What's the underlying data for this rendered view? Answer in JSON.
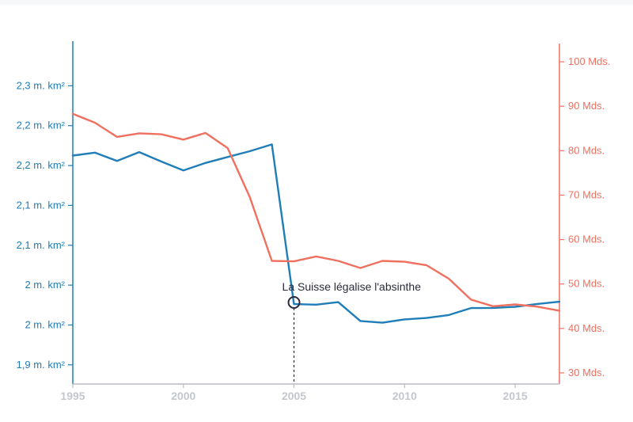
{
  "chart_data": {
    "type": "line",
    "x": [
      1995,
      1996,
      1997,
      1998,
      1999,
      2000,
      2001,
      2002,
      2003,
      2004,
      2005,
      2006,
      2007,
      2008,
      2009,
      2010,
      2011,
      2012,
      2013,
      2014,
      2015,
      2016,
      2017
    ],
    "series": [
      {
        "axis": "left",
        "color": "#1f7db8",
        "values": [
          2.1625,
          2.1661,
          2.1557,
          2.1668,
          2.155,
          2.1439,
          2.1532,
          2.1607,
          2.1679,
          2.1765,
          1.9763,
          1.9755,
          1.9787,
          1.955,
          1.9529,
          1.957,
          1.9588,
          1.9625,
          1.9712,
          1.9714,
          1.9728,
          1.9764,
          1.9792
        ]
      },
      {
        "axis": "right",
        "color": "#f07060",
        "values": [
          88.3,
          86.3,
          83.1,
          83.9,
          83.7,
          82.5,
          84.0,
          80.6,
          69.6,
          55.2,
          55.1,
          56.2,
          55.2,
          53.6,
          55.2,
          55.0,
          54.2,
          51.2,
          46.5,
          45.0,
          45.4,
          44.9,
          44.0
        ]
      }
    ],
    "left_axis": {
      "ylim": [
        1.875,
        2.3
      ],
      "ticks": [
        1.9,
        1.95,
        2.0,
        2.05,
        2.1,
        2.15,
        2.2,
        2.25
      ],
      "tick_labels": [
        "1,9 m. km²",
        "2 m. km²",
        "2 m. km²",
        "2,1 m. km²",
        "2,1 m. km²",
        "2,2 m. km²",
        "2,2 m. km²",
        "2,3 m. km²"
      ]
    },
    "right_axis": {
      "ylim": [
        27.5,
        105
      ],
      "ticks": [
        30,
        40,
        50,
        60,
        70,
        80,
        90,
        100
      ],
      "tick_labels": [
        "30 Mds.",
        "40 Mds.",
        "50 Mds.",
        "60 Mds.",
        "70 Mds.",
        "80 Mds.",
        "90 Mds.",
        "100 Mds."
      ]
    },
    "x_axis": {
      "xlim": [
        1995,
        2017
      ],
      "ticks": [
        1995,
        2000,
        2005,
        2010,
        2015
      ],
      "tick_labels": [
        "1995",
        "2000",
        "2005",
        "2010",
        "2015"
      ]
    },
    "annotation": {
      "text": "La Suisse légalise l'absinthe",
      "x": 2005,
      "y_left": 1.9763
    },
    "grid": false,
    "legend": "none"
  }
}
